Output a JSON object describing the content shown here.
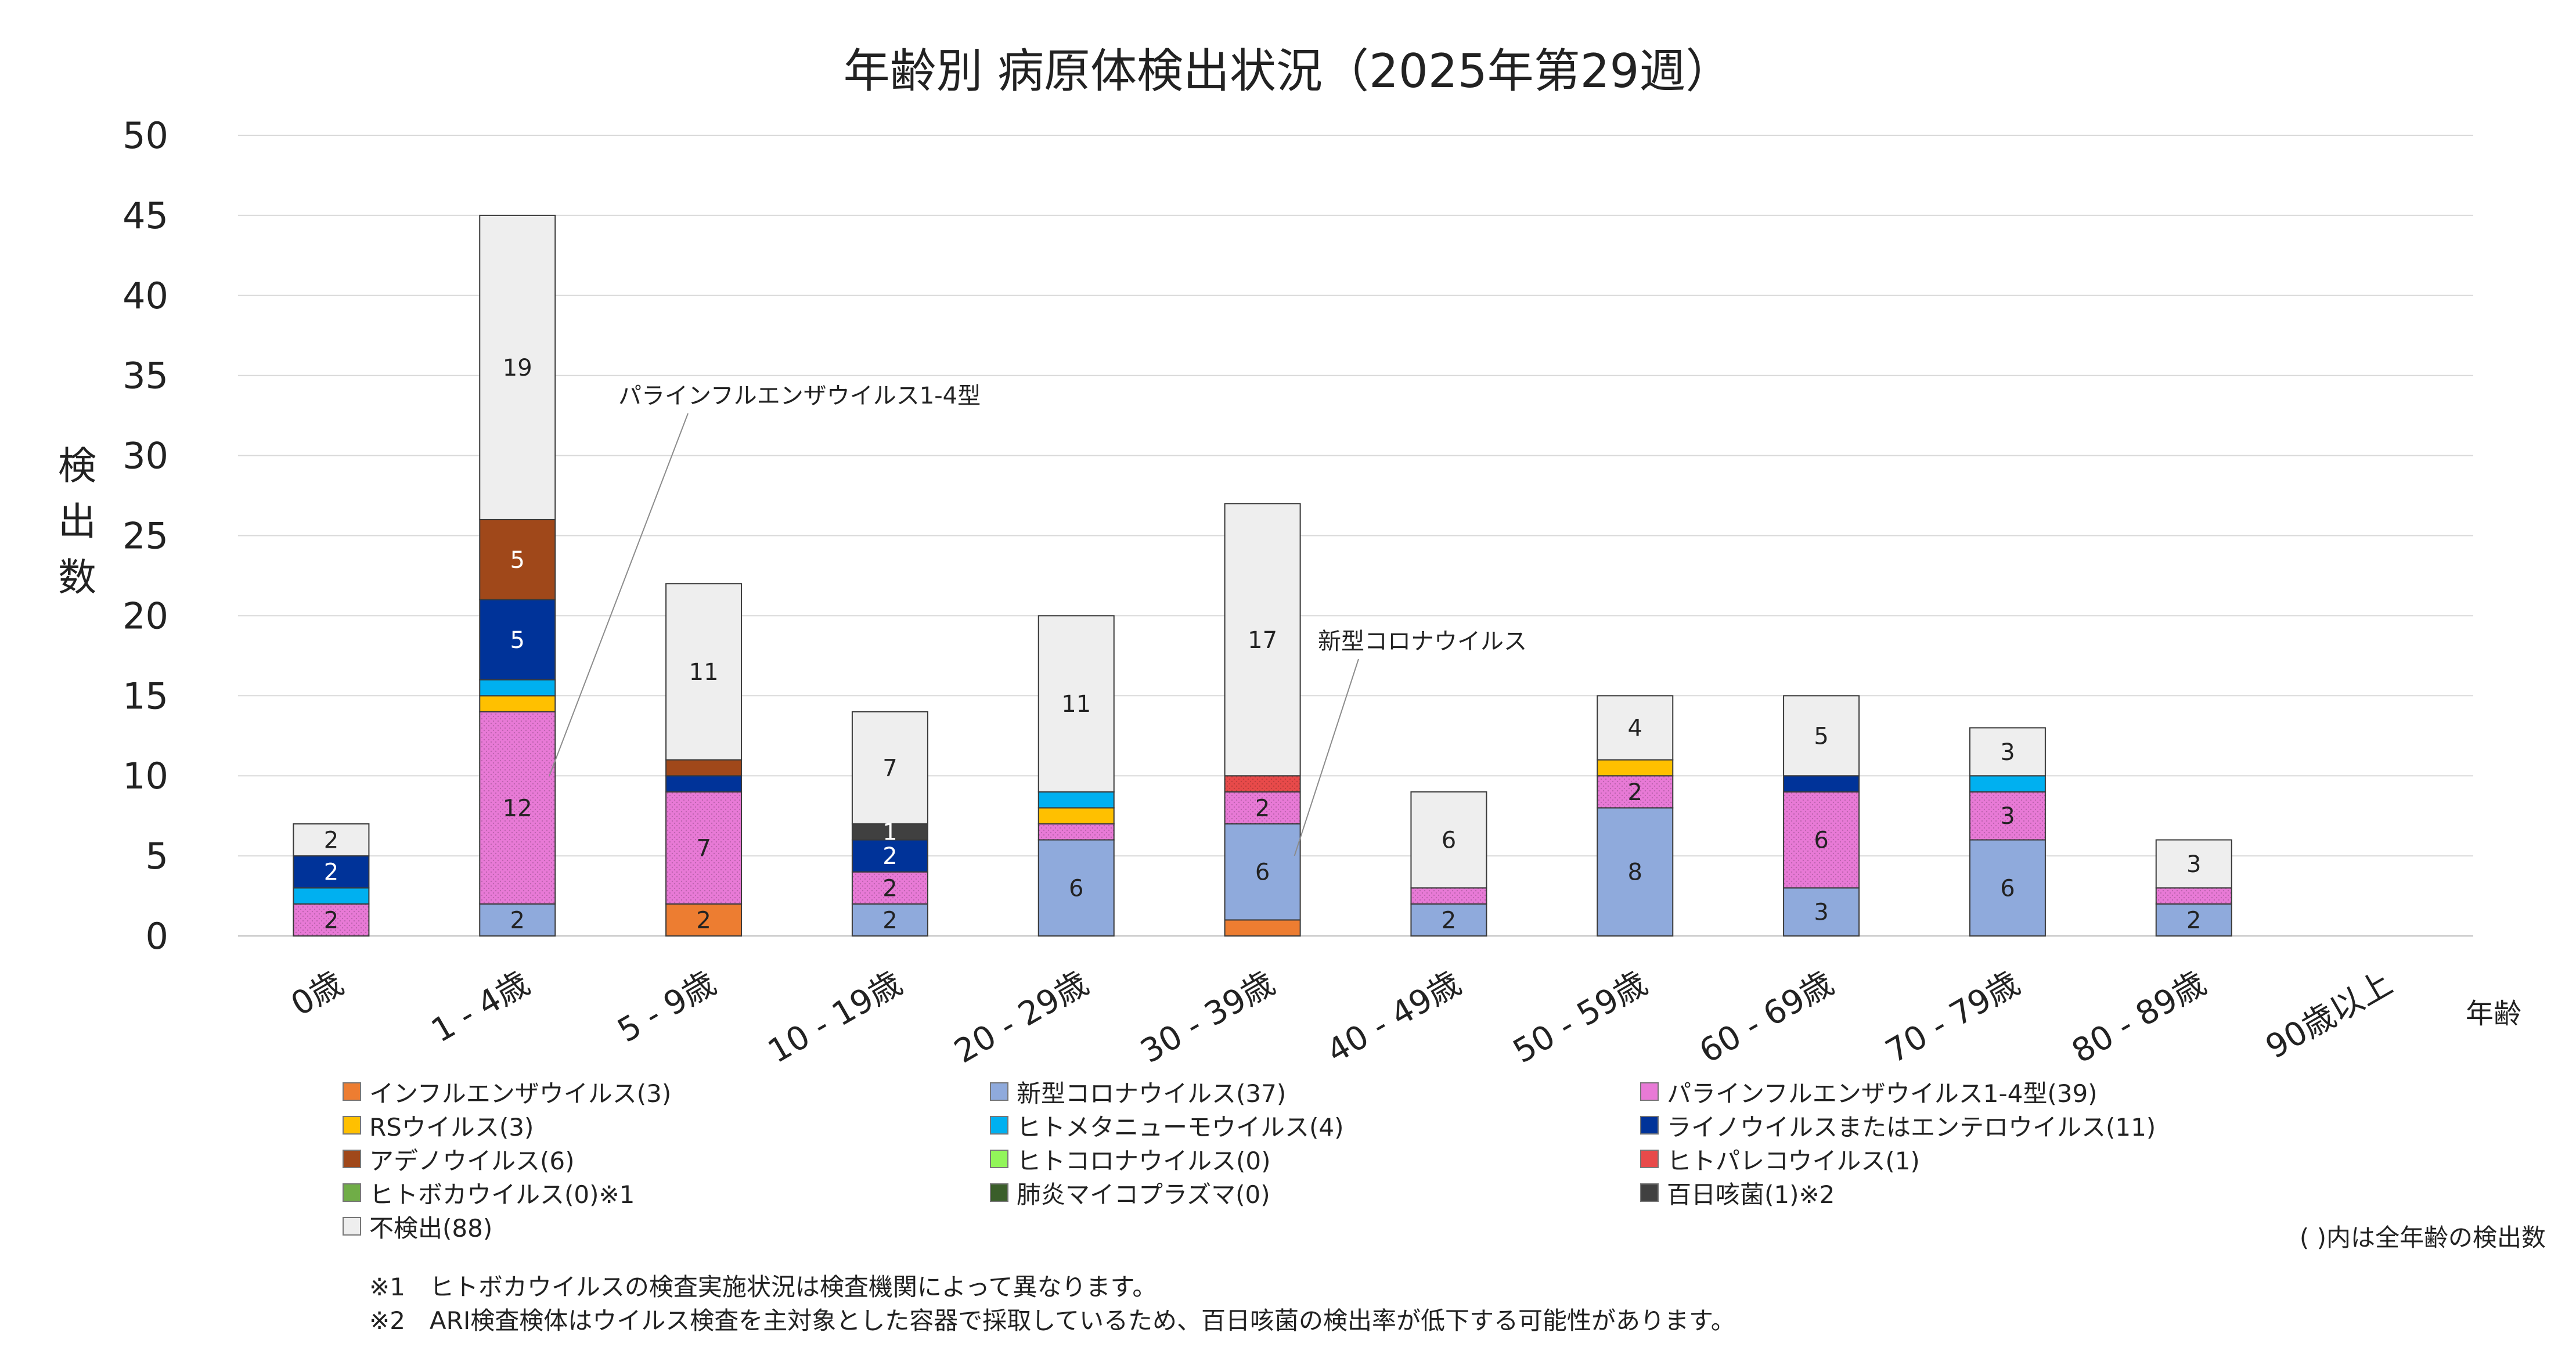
{
  "chart_data": {
    "type": "bar",
    "stacked": true,
    "title": "年齢別 病原体検出状況（2025年第29週）",
    "xlabel": "年齢",
    "ylabel": "検出数",
    "ylim": [
      0,
      50
    ],
    "yticks": [
      0,
      5,
      10,
      15,
      20,
      25,
      30,
      35,
      40,
      45,
      50
    ],
    "grid": true,
    "legend_position": "bottom",
    "categories": [
      "0歳",
      "1 - 4歳",
      "5 - 9歳",
      "10 - 19歳",
      "20 - 29歳",
      "30 - 39歳",
      "40 - 49歳",
      "50 - 59歳",
      "60 - 69歳",
      "70 - 79歳",
      "80 - 89歳",
      "90歳以上"
    ],
    "series": [
      {
        "name": "インフルエンザウイルス(3)",
        "color": "#ed7d31",
        "values": [
          0,
          0,
          2,
          0,
          0,
          1,
          0,
          0,
          0,
          0,
          0,
          0
        ]
      },
      {
        "name": "新型コロナウイルス(37)",
        "color": "#8faadc",
        "values": [
          0,
          2,
          0,
          2,
          6,
          6,
          2,
          8,
          3,
          6,
          2,
          0
        ]
      },
      {
        "name": "パラインフルエンザウイルス1-4型(39)",
        "color": "#e87ad6",
        "values": [
          2,
          12,
          7,
          2,
          1,
          2,
          1,
          2,
          6,
          3,
          1,
          0
        ]
      },
      {
        "name": "RSウイルス(3)",
        "color": "#ffc000",
        "values": [
          0,
          1,
          0,
          0,
          1,
          0,
          0,
          1,
          0,
          0,
          0,
          0
        ]
      },
      {
        "name": "ヒトメタニューモウイルス(4)",
        "color": "#00b0f0",
        "values": [
          1,
          1,
          0,
          0,
          1,
          0,
          0,
          0,
          0,
          1,
          0,
          0
        ]
      },
      {
        "name": "ライノウイルスまたはエンテロウイルス(11)",
        "color": "#003399",
        "values": [
          2,
          5,
          1,
          2,
          0,
          0,
          0,
          0,
          1,
          0,
          0,
          0
        ]
      },
      {
        "name": "アデノウイルス(6)",
        "color": "#a0481a",
        "values": [
          0,
          5,
          1,
          0,
          0,
          0,
          0,
          0,
          0,
          0,
          0,
          0
        ]
      },
      {
        "name": "ヒトコロナウイルス(0)",
        "color": "#92f55a",
        "values": [
          0,
          0,
          0,
          0,
          0,
          0,
          0,
          0,
          0,
          0,
          0,
          0
        ]
      },
      {
        "name": "ヒトパレコウイルス(1)",
        "color": "#e84a4a",
        "values": [
          0,
          0,
          0,
          0,
          0,
          1,
          0,
          0,
          0,
          0,
          0,
          0
        ]
      },
      {
        "name": "ヒトボカウイルス(0)※1",
        "color": "#70ad47",
        "values": [
          0,
          0,
          0,
          0,
          0,
          0,
          0,
          0,
          0,
          0,
          0,
          0
        ]
      },
      {
        "name": "肺炎マイコプラズマ(0)",
        "color": "#3a5e2a",
        "values": [
          0,
          0,
          0,
          0,
          0,
          0,
          0,
          0,
          0,
          0,
          0,
          0
        ]
      },
      {
        "name": "百日咳菌(1)※2",
        "color": "#404040",
        "values": [
          0,
          0,
          0,
          1,
          0,
          0,
          0,
          0,
          0,
          0,
          0,
          0
        ]
      },
      {
        "name": "不検出(88)",
        "color": "#eeeeee",
        "values": [
          2,
          19,
          11,
          7,
          11,
          17,
          6,
          4,
          5,
          3,
          3,
          0
        ]
      }
    ],
    "data_labels": [
      {
        "category": 0,
        "series": 2,
        "value": "2"
      },
      {
        "category": 0,
        "series": 5,
        "value": "2"
      },
      {
        "category": 0,
        "series": 12,
        "value": "2"
      },
      {
        "category": 1,
        "series": 1,
        "value": "2"
      },
      {
        "category": 1,
        "series": 2,
        "value": "12"
      },
      {
        "category": 1,
        "series": 5,
        "value": "5"
      },
      {
        "category": 1,
        "series": 6,
        "value": "5"
      },
      {
        "category": 1,
        "series": 12,
        "value": "19"
      },
      {
        "category": 2,
        "series": 0,
        "value": "2"
      },
      {
        "category": 2,
        "series": 2,
        "value": "7"
      },
      {
        "category": 2,
        "series": 12,
        "value": "11"
      },
      {
        "category": 3,
        "series": 1,
        "value": "2"
      },
      {
        "category": 3,
        "series": 2,
        "value": "2"
      },
      {
        "category": 3,
        "series": 5,
        "value": "2"
      },
      {
        "category": 3,
        "series": 11,
        "value": "1"
      },
      {
        "category": 3,
        "series": 12,
        "value": "7"
      },
      {
        "category": 4,
        "series": 1,
        "value": "6"
      },
      {
        "category": 4,
        "series": 12,
        "value": "11"
      },
      {
        "category": 5,
        "series": 1,
        "value": "6"
      },
      {
        "category": 5,
        "series": 2,
        "value": "2"
      },
      {
        "category": 5,
        "series": 12,
        "value": "17"
      },
      {
        "category": 6,
        "series": 1,
        "value": "2"
      },
      {
        "category": 6,
        "series": 12,
        "value": "6"
      },
      {
        "category": 7,
        "series": 1,
        "value": "8"
      },
      {
        "category": 7,
        "series": 2,
        "value": "2"
      },
      {
        "category": 7,
        "series": 12,
        "value": "4"
      },
      {
        "category": 8,
        "series": 1,
        "value": "3"
      },
      {
        "category": 8,
        "series": 2,
        "value": "6"
      },
      {
        "category": 8,
        "series": 12,
        "value": "5"
      },
      {
        "category": 9,
        "series": 1,
        "value": "6"
      },
      {
        "category": 9,
        "series": 2,
        "value": "3"
      },
      {
        "category": 9,
        "series": 12,
        "value": "3"
      },
      {
        "category": 10,
        "series": 1,
        "value": "2"
      },
      {
        "category": 10,
        "series": 12,
        "value": "3"
      }
    ],
    "annotations": [
      {
        "text": "パラインフルエンザウイルス1-4型",
        "category": 1,
        "y": 10
      },
      {
        "text": "新型コロナウイルス",
        "category": 5,
        "y": 5
      }
    ]
  },
  "notes": {
    "legend_note": "( )内は全年齢の検出数",
    "footnote1": "※1　ヒトボカウイルスの検査実施状況は検査機関によって異なります。",
    "footnote2": "※2　ARI検査検体はウイルス検査を主対象とした容器で採取しているため、百日咳菌の検出率が低下する可能性があります。"
  }
}
